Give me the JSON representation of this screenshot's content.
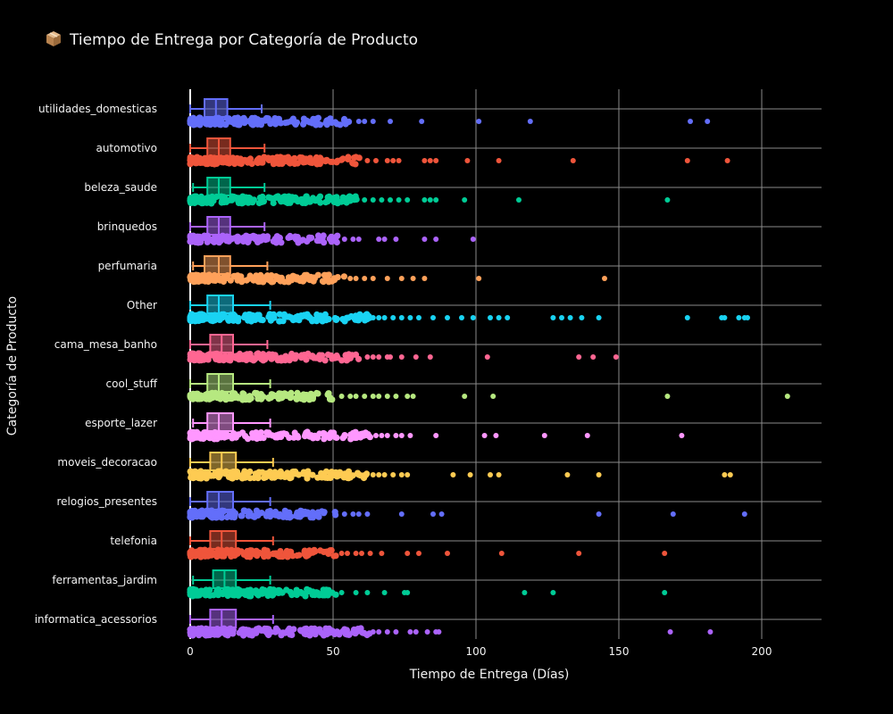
{
  "chart_data": {
    "type": "box",
    "title": "Tiempo de Entrega por Categoría de Producto",
    "xlabel": "Tiempo de Entrega (Días)",
    "ylabel": "Categoría de Producto",
    "xlim": [
      0,
      220
    ],
    "xticks": [
      0,
      50,
      100,
      150,
      200
    ],
    "grid": true,
    "legend": "none",
    "orientation": "horizontal",
    "categories": [
      "utilidades_domesticas",
      "automotivo",
      "beleza_saude",
      "brinquedos",
      "perfumaria",
      "Other",
      "cama_mesa_banho",
      "cool_stuff",
      "esporte_lazer",
      "moveis_decoracao",
      "relogios_presentes",
      "telefonia",
      "ferramentas_jardim",
      "informatica_acessorios"
    ],
    "series": [
      {
        "category": "utilidades_domesticas",
        "color": "#636efa",
        "whisker_low": 0,
        "q1": 5,
        "median": 9,
        "q3": 13,
        "whisker_high": 25,
        "dense_end": 58,
        "outliers": [
          59,
          61,
          64,
          70,
          81,
          101,
          119,
          175,
          181
        ]
      },
      {
        "category": "automotivo",
        "color": "#ef553b",
        "whisker_low": 0,
        "q1": 6,
        "median": 10,
        "q3": 14,
        "whisker_high": 26,
        "dense_end": 60,
        "outliers": [
          62,
          65,
          69,
          71,
          73,
          82,
          84,
          86,
          97,
          108,
          134,
          174,
          188
        ]
      },
      {
        "category": "beleza_saude",
        "color": "#00cc96",
        "whisker_low": 1,
        "q1": 6,
        "median": 10,
        "q3": 14,
        "whisker_high": 26,
        "dense_end": 59,
        "outliers": [
          61,
          64,
          67,
          70,
          73,
          76,
          82,
          84,
          86,
          96,
          115,
          167
        ]
      },
      {
        "category": "brinquedos",
        "color": "#ab63fa",
        "whisker_low": 0,
        "q1": 6,
        "median": 10,
        "q3": 14,
        "whisker_high": 26,
        "dense_end": 52,
        "outliers": [
          54,
          57,
          59,
          66,
          68,
          72,
          82,
          86,
          99
        ]
      },
      {
        "category": "perfumaria",
        "color": "#ffa15a",
        "whisker_low": 1,
        "q1": 5,
        "median": 10,
        "q3": 14,
        "whisker_high": 27,
        "dense_end": 54,
        "outliers": [
          56,
          58,
          61,
          64,
          69,
          74,
          78,
          82,
          101,
          145
        ]
      },
      {
        "category": "Other",
        "color": "#19d3f3",
        "whisker_low": 0,
        "q1": 6,
        "median": 10,
        "q3": 15,
        "whisker_high": 28,
        "dense_end": 63,
        "outliers": [
          64,
          66,
          68,
          71,
          74,
          77,
          80,
          85,
          90,
          95,
          99,
          105,
          108,
          111,
          127,
          130,
          133,
          137,
          143,
          174,
          186,
          187,
          192,
          194,
          195
        ]
      },
      {
        "category": "cama_mesa_banho",
        "color": "#ff6692",
        "whisker_low": 0,
        "q1": 7,
        "median": 11,
        "q3": 15,
        "whisker_high": 27,
        "dense_end": 60,
        "outliers": [
          62,
          64,
          66,
          69,
          70,
          74,
          79,
          84,
          104,
          136,
          141,
          149
        ]
      },
      {
        "category": "cool_stuff",
        "color": "#b6e880",
        "whisker_low": 0,
        "q1": 6,
        "median": 10,
        "q3": 15,
        "whisker_high": 28,
        "dense_end": 51,
        "outliers": [
          53,
          56,
          58,
          61,
          64,
          66,
          69,
          72,
          76,
          78,
          96,
          106,
          167,
          209
        ]
      },
      {
        "category": "esporte_lazer",
        "color": "#ff97ff",
        "whisker_low": 1,
        "q1": 6,
        "median": 10,
        "q3": 15,
        "whisker_high": 28,
        "dense_end": 63,
        "outliers": [
          65,
          67,
          69,
          72,
          74,
          77,
          86,
          103,
          107,
          124,
          139,
          172
        ]
      },
      {
        "category": "moveis_decoracao",
        "color": "#fecb52",
        "whisker_low": 0,
        "q1": 7,
        "median": 11,
        "q3": 16,
        "whisker_high": 29,
        "dense_end": 62,
        "outliers": [
          64,
          66,
          68,
          71,
          74,
          76,
          92,
          98,
          105,
          108,
          132,
          143,
          187,
          189
        ]
      },
      {
        "category": "relogios_presentes",
        "color": "#636efa",
        "whisker_low": 0,
        "q1": 6,
        "median": 10,
        "q3": 15,
        "whisker_high": 28,
        "dense_end": 52,
        "outliers": [
          54,
          57,
          59,
          62,
          74,
          85,
          88,
          143,
          169,
          194
        ]
      },
      {
        "category": "telefonia",
        "color": "#ef553b",
        "whisker_low": 0,
        "q1": 7,
        "median": 11,
        "q3": 16,
        "whisker_high": 29,
        "dense_end": 51,
        "outliers": [
          53,
          55,
          58,
          60,
          63,
          67,
          76,
          80,
          90,
          109,
          136,
          166
        ]
      },
      {
        "category": "ferramentas_jardim",
        "color": "#00cc96",
        "whisker_low": 1,
        "q1": 8,
        "median": 12,
        "q3": 16,
        "whisker_high": 28,
        "dense_end": 51,
        "outliers": [
          53,
          58,
          62,
          68,
          75,
          76,
          117,
          127,
          166
        ]
      },
      {
        "category": "informatica_acessorios",
        "color": "#ab63fa",
        "whisker_low": 0,
        "q1": 7,
        "median": 11,
        "q3": 16,
        "whisker_high": 29,
        "dense_end": 63,
        "outliers": [
          64,
          66,
          69,
          72,
          77,
          79,
          83,
          86,
          87,
          168,
          182
        ]
      }
    ]
  }
}
